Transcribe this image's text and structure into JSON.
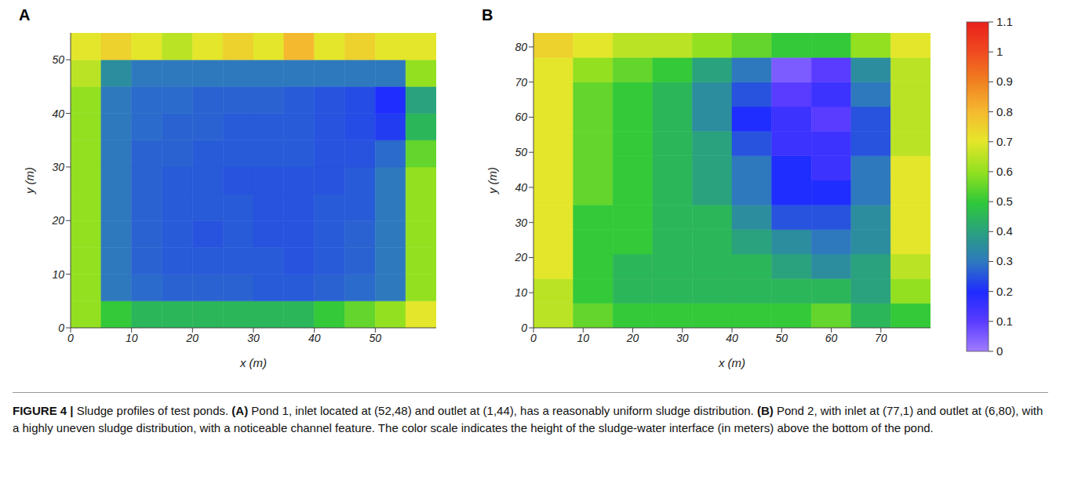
{
  "chart_data": [
    {
      "type": "heatmap",
      "panel": "A",
      "xlabel": "x (m)",
      "ylabel": "y (m)",
      "xlim": [
        0,
        60
      ],
      "ylim": [
        0,
        55
      ],
      "xticks": [
        0,
        10,
        20,
        30,
        40,
        50
      ],
      "yticks": [
        0,
        10,
        20,
        30,
        40,
        50
      ],
      "x_edges": [
        0,
        5,
        10,
        15,
        20,
        25,
        30,
        35,
        40,
        45,
        50,
        55,
        60
      ],
      "y_edges": [
        0,
        5,
        10,
        15,
        20,
        25,
        30,
        35,
        40,
        45,
        50,
        55
      ],
      "cells": [
        [
          0.6,
          0.5,
          0.45,
          0.45,
          0.45,
          0.45,
          0.45,
          0.45,
          0.5,
          0.55,
          0.6,
          0.7
        ],
        [
          0.6,
          0.3,
          0.28,
          0.27,
          0.27,
          0.27,
          0.26,
          0.26,
          0.27,
          0.28,
          0.3,
          0.6
        ],
        [
          0.6,
          0.3,
          0.27,
          0.26,
          0.26,
          0.26,
          0.26,
          0.25,
          0.26,
          0.27,
          0.3,
          0.6
        ],
        [
          0.6,
          0.3,
          0.27,
          0.26,
          0.25,
          0.26,
          0.25,
          0.25,
          0.26,
          0.27,
          0.3,
          0.6
        ],
        [
          0.6,
          0.3,
          0.27,
          0.26,
          0.26,
          0.26,
          0.25,
          0.25,
          0.26,
          0.26,
          0.3,
          0.6
        ],
        [
          0.6,
          0.3,
          0.27,
          0.26,
          0.26,
          0.25,
          0.25,
          0.25,
          0.25,
          0.26,
          0.3,
          0.6
        ],
        [
          0.6,
          0.3,
          0.27,
          0.27,
          0.26,
          0.26,
          0.26,
          0.26,
          0.25,
          0.25,
          0.28,
          0.55
        ],
        [
          0.6,
          0.3,
          0.28,
          0.27,
          0.27,
          0.26,
          0.26,
          0.26,
          0.25,
          0.24,
          0.22,
          0.45
        ],
        [
          0.6,
          0.3,
          0.28,
          0.28,
          0.27,
          0.27,
          0.27,
          0.26,
          0.25,
          0.24,
          0.2,
          0.4
        ],
        [
          0.65,
          0.35,
          0.3,
          0.3,
          0.3,
          0.3,
          0.3,
          0.3,
          0.3,
          0.3,
          0.3,
          0.6
        ],
        [
          0.7,
          0.75,
          0.7,
          0.65,
          0.7,
          0.75,
          0.7,
          0.8,
          0.7,
          0.75,
          0.7,
          0.7
        ]
      ]
    },
    {
      "type": "heatmap",
      "panel": "B",
      "xlabel": "x (m)",
      "ylabel": "y (m)",
      "xlim": [
        0,
        80
      ],
      "ylim": [
        0,
        84
      ],
      "xticks": [
        0,
        10,
        20,
        30,
        40,
        50,
        60,
        70
      ],
      "yticks": [
        0,
        10,
        20,
        30,
        40,
        50,
        60,
        70,
        80
      ],
      "x_edges": [
        0,
        8,
        16,
        24,
        32,
        40,
        48,
        56,
        64,
        72,
        80
      ],
      "y_edges": [
        0,
        7,
        14,
        21,
        28,
        35,
        42,
        49,
        56,
        63,
        70,
        77,
        84
      ],
      "cells": [
        [
          0.65,
          0.55,
          0.5,
          0.5,
          0.5,
          0.5,
          0.5,
          0.55,
          0.45,
          0.5
        ],
        [
          0.65,
          0.5,
          0.45,
          0.45,
          0.45,
          0.45,
          0.45,
          0.45,
          0.4,
          0.6
        ],
        [
          0.7,
          0.5,
          0.45,
          0.45,
          0.45,
          0.45,
          0.4,
          0.35,
          0.4,
          0.65
        ],
        [
          0.7,
          0.5,
          0.5,
          0.45,
          0.45,
          0.4,
          0.35,
          0.3,
          0.35,
          0.7
        ],
        [
          0.7,
          0.5,
          0.5,
          0.45,
          0.45,
          0.35,
          0.25,
          0.25,
          0.35,
          0.7
        ],
        [
          0.7,
          0.55,
          0.5,
          0.45,
          0.4,
          0.3,
          0.2,
          0.2,
          0.3,
          0.7
        ],
        [
          0.7,
          0.55,
          0.5,
          0.45,
          0.4,
          0.3,
          0.2,
          0.15,
          0.3,
          0.7
        ],
        [
          0.7,
          0.55,
          0.5,
          0.45,
          0.4,
          0.25,
          0.15,
          0.15,
          0.25,
          0.65
        ],
        [
          0.7,
          0.55,
          0.5,
          0.45,
          0.35,
          0.2,
          0.15,
          0.1,
          0.25,
          0.65
        ],
        [
          0.7,
          0.55,
          0.5,
          0.45,
          0.35,
          0.25,
          0.1,
          0.15,
          0.3,
          0.65
        ],
        [
          0.7,
          0.6,
          0.55,
          0.5,
          0.4,
          0.3,
          0.05,
          0.1,
          0.35,
          0.65
        ],
        [
          0.75,
          0.7,
          0.65,
          0.65,
          0.6,
          0.55,
          0.5,
          0.5,
          0.6,
          0.7
        ]
      ]
    }
  ],
  "colorbar": {
    "range": [
      0,
      1.1
    ],
    "ticks": [
      0,
      0.1,
      0.2,
      0.3,
      0.4,
      0.5,
      0.6,
      0.7,
      0.8,
      0.9,
      1,
      1.1
    ]
  },
  "caption": {
    "label": "FIGURE 4 |",
    "parts": [
      {
        "text": " Sludge profiles of test ponds. ",
        "bold": false
      },
      {
        "text": "(A)",
        "bold": true
      },
      {
        "text": " Pond 1, inlet located at (52,48) and outlet at (1,44), has a reasonably uniform sludge distribution. ",
        "bold": false
      },
      {
        "text": "(B)",
        "bold": true
      },
      {
        "text": " Pond 2, with inlet at (77,1) and outlet at (6,80), with a highly uneven sludge distribution, with a noticeable channel feature. The color scale indicates the height of the sludge-water interface (in meters) above the bottom of the pond.",
        "bold": false
      }
    ]
  }
}
